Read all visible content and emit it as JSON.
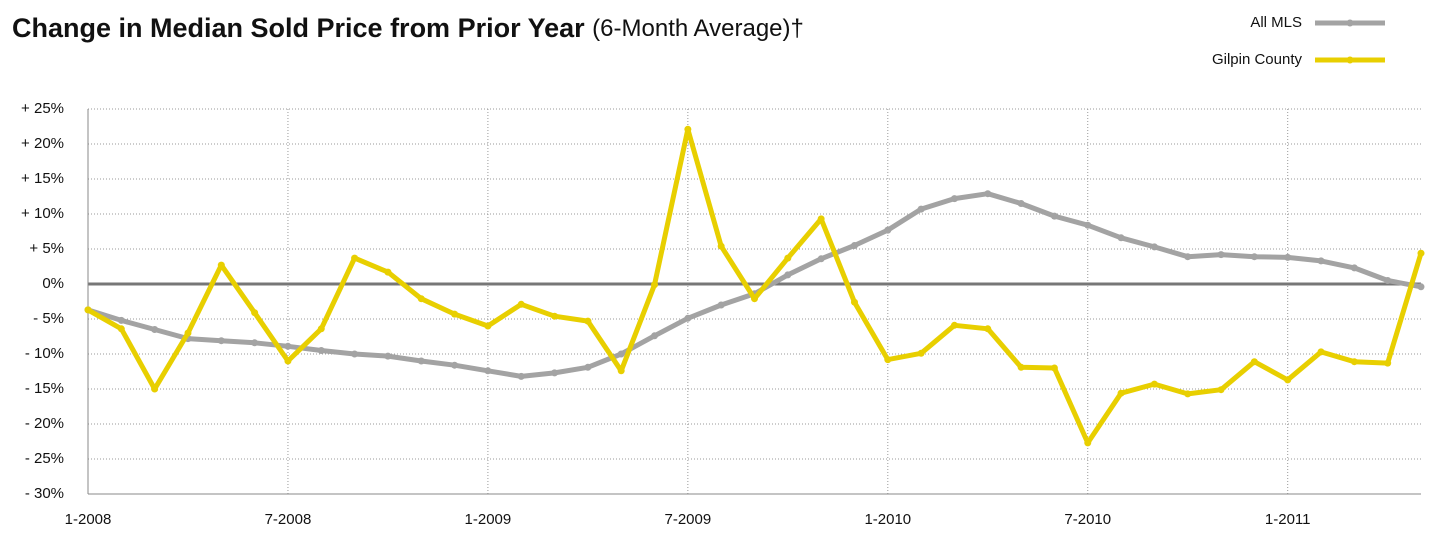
{
  "chart_data": {
    "type": "line",
    "title": "Change in Median Sold Price from Prior Year",
    "subtitle": "(6-Month Average)†",
    "categories": [
      "1-2008",
      null,
      null,
      null,
      null,
      null,
      "7-2008",
      null,
      null,
      null,
      null,
      null,
      "1-2009",
      null,
      null,
      null,
      null,
      null,
      "7-2009",
      null,
      null,
      null,
      null,
      null,
      "1-2010",
      null,
      null,
      null,
      null,
      null,
      "7-2010",
      null,
      null,
      null,
      null,
      null,
      "1-2011",
      null,
      null,
      null,
      null
    ],
    "series": [
      {
        "name": "All MLS",
        "color": "#a3a3a3",
        "values": [
          -3.7,
          -5.2,
          -6.5,
          -7.8,
          -8.1,
          -8.4,
          -8.9,
          -9.5,
          -10.0,
          -10.3,
          -11.0,
          -11.6,
          -12.4,
          -13.2,
          -12.7,
          -11.9,
          -10.0,
          -7.4,
          -4.9,
          -3.0,
          -1.4,
          1.3,
          3.6,
          5.5,
          7.7,
          10.7,
          12.2,
          12.9,
          11.5,
          9.7,
          8.4,
          6.6,
          5.3,
          3.9,
          4.2,
          3.9,
          3.8,
          3.3,
          2.3,
          0.5,
          -0.4
        ]
      },
      {
        "name": "Gilpin County",
        "color": "#e8cf00",
        "values": [
          -3.7,
          -6.4,
          -15.0,
          -7.0,
          2.7,
          -4.1,
          -11.0,
          -6.4,
          3.7,
          1.7,
          -2.1,
          -4.3,
          -6.0,
          -2.9,
          -4.6,
          -5.3,
          -12.4,
          -0.1,
          22.1,
          5.4,
          -2.1,
          3.7,
          9.3,
          -2.6,
          -10.8,
          -9.9,
          -5.9,
          -6.4,
          -11.9,
          -12.0,
          -22.7,
          -15.6,
          -14.3,
          -15.7,
          -15.1,
          -11.1,
          -13.7,
          -9.7,
          -11.1,
          -11.3,
          4.4
        ]
      }
    ],
    "ylim": [
      -30,
      25
    ],
    "yticks": [
      {
        "value": -30,
        "label": "- 30%"
      },
      {
        "value": -25,
        "label": "- 25%"
      },
      {
        "value": -20,
        "label": "- 20%"
      },
      {
        "value": -15,
        "label": "- 15%"
      },
      {
        "value": -10,
        "label": "- 10%"
      },
      {
        "value": -5,
        "label": "- 5%"
      },
      {
        "value": 0,
        "label": "0%"
      },
      {
        "value": 5,
        "label": "+ 5%"
      },
      {
        "value": 10,
        "label": "+ 10%"
      },
      {
        "value": 15,
        "label": "+ 15%"
      },
      {
        "value": 20,
        "label": "+ 20%"
      },
      {
        "value": 25,
        "label": "+ 25%"
      }
    ],
    "grid": true,
    "legend": "top-right"
  }
}
